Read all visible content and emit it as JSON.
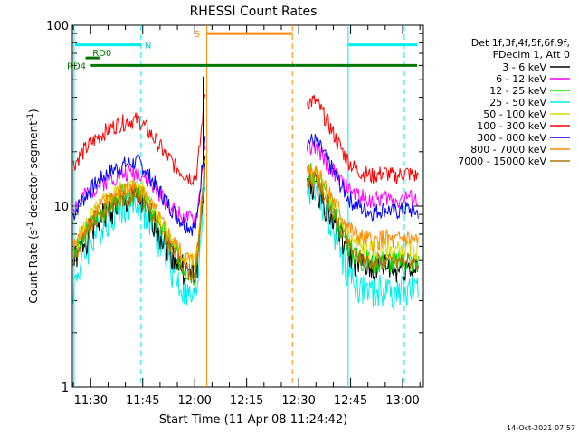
{
  "chart_data": {
    "type": "line",
    "title": "RHESSI Count Rates",
    "xlabel": "Start Time (11-Apr-08 11:24:42)",
    "ylabel": "Count Rate (s⁻¹ detector segment⁻¹)",
    "ylabel_parts": {
      "main": "Count Rate (s",
      "sup1": "-1",
      "mid": " detector segment",
      "sup2": "-1",
      "end": ")"
    },
    "yscale": "log",
    "xlim": [
      24.7,
      126
    ],
    "ylim": [
      1,
      100
    ],
    "xticks": [
      {
        "minutes": 30,
        "label": "11:30"
      },
      {
        "minutes": 45,
        "label": "11:45"
      },
      {
        "minutes": 60,
        "label": "12:00"
      },
      {
        "minutes": 75,
        "label": "12:15"
      },
      {
        "minutes": 90,
        "label": "12:30"
      },
      {
        "minutes": 105,
        "label": "12:45"
      },
      {
        "minutes": 120,
        "label": "13:00"
      }
    ],
    "yticks": [
      {
        "value": 1,
        "label": "1"
      },
      {
        "value": 10,
        "label": "10"
      },
      {
        "value": 100,
        "label": "100"
      }
    ],
    "legend": {
      "position": "right",
      "header": [
        "Det 1f,3f,4f,5f,6f,9f,",
        "FDecim 1, Att 0"
      ]
    },
    "gaps": [
      [
        63.2,
        92.5
      ]
    ],
    "series": [
      {
        "name": "3 - 6 keV",
        "color": "#000000",
        "edge": 4.9,
        "mid": 11.0,
        "end": 4.6,
        "after_max": 8.5,
        "after_start": 13,
        "noise": 0.09,
        "seed": 1
      },
      {
        "name": "6 - 12 keV",
        "color": "#ff00ff",
        "edge": 9.9,
        "mid": 15.5,
        "end": 11.0,
        "after_max": 19,
        "after_start": 21,
        "noise": 0.05,
        "seed": 2
      },
      {
        "name": "12 - 25 keV",
        "color": "#00dd00",
        "edge": 5.1,
        "mid": 12.0,
        "end": 5.0,
        "after_max": 13,
        "after_start": 15,
        "noise": 0.07,
        "seed": 3
      },
      {
        "name": "25 - 50 keV",
        "color": "#00eeee",
        "edge": 3.6,
        "mid": 10.5,
        "end": 3.4,
        "after_max": 11,
        "after_start": 12,
        "noise": 0.1,
        "seed": 4
      },
      {
        "name": "50 - 100 keV",
        "color": "#d8d800",
        "edge": 5.8,
        "mid": 13.0,
        "end": 5.8,
        "after_max": 13.5,
        "after_start": 15,
        "noise": 0.06,
        "seed": 5
      },
      {
        "name": "100 - 300 keV",
        "color": "#ff0000",
        "edge": 17,
        "mid": 30,
        "end": 15,
        "after_max": 34,
        "after_start": 38,
        "noise": 0.05,
        "seed": 6
      },
      {
        "name": "300 - 800 keV",
        "color": "#0000ff",
        "edge": 9.0,
        "mid": 17.5,
        "end": 9.5,
        "after_max": 20,
        "after_start": 23,
        "noise": 0.05,
        "seed": 7
      },
      {
        "name": "800 - 7000 keV",
        "color": "#ff8800",
        "edge": 5.8,
        "mid": 12.5,
        "end": 6.5,
        "after_max": 13,
        "after_start": 16,
        "noise": 0.06,
        "seed": 8
      },
      {
        "name": "7000 - 15000 keV",
        "color": "#aa7700",
        "edge": 5.0,
        "mid": 11.5,
        "end": 5.0,
        "after_max": 11,
        "after_start": 14,
        "noise": 0.05,
        "seed": 9
      }
    ],
    "spike": {
      "minutes": 62.5,
      "value": 52
    },
    "annotations": {
      "vlines": [
        {
          "minutes": 25.2,
          "color": "#00eeee",
          "style": "solid",
          "label": ""
        },
        {
          "minutes": 44.5,
          "color": "#00eeee",
          "style": "dashed",
          "label": "N"
        },
        {
          "minutes": 63.5,
          "color": "#ff8800",
          "style": "solid",
          "label": "S"
        },
        {
          "minutes": 88.2,
          "color": "#ff8800",
          "style": "dashed",
          "label": ""
        },
        {
          "minutes": 104.3,
          "color": "#00eeee",
          "style": "solid",
          "label": ""
        },
        {
          "minutes": 120.5,
          "color": "#00eeee",
          "style": "dashed",
          "label": ""
        }
      ],
      "bars": [
        {
          "label": "",
          "color": "#00eeee",
          "y": 78,
          "segments": [
            [
              25.5,
              44.5
            ],
            [
              104.3,
              124.2
            ]
          ]
        },
        {
          "label": "S",
          "color": "#ff8800",
          "y": 90,
          "segments": [
            [
              63.5,
              88.2
            ]
          ]
        },
        {
          "label": "RD0",
          "color": "#007700",
          "y": 66,
          "segments": [
            [
              28.5,
              32.5
            ]
          ]
        },
        {
          "label": "RD4",
          "color": "#007700",
          "y": 60,
          "segments": [
            [
              30,
              53
            ],
            [
              53,
              89
            ],
            [
              89,
              100
            ],
            [
              100,
              124.2
            ]
          ]
        }
      ],
      "bar_labels": {
        "N": "N",
        "S": "S",
        "RD0": "RD0",
        "RD4": "RD4"
      }
    },
    "footer_timestamp": "14-Oct-2021 07:57"
  }
}
